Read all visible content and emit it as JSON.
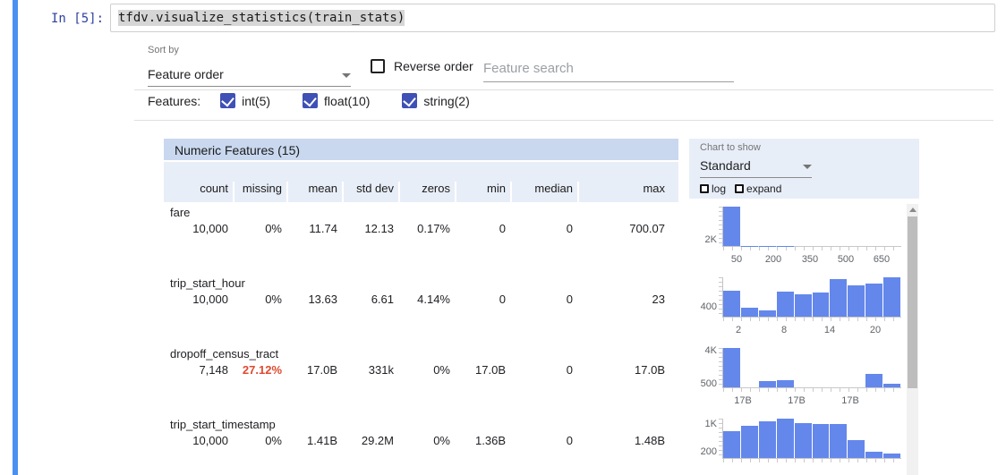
{
  "notebook": {
    "prompt": "In [5]:",
    "code": "tfdv.visualize_statistics(train_stats)"
  },
  "controls": {
    "sort_by_label": "Sort by",
    "sort_by_value": "Feature order",
    "reverse_order_label": "Reverse order",
    "feature_search_placeholder": "Feature search",
    "features_label": "Features:",
    "feature_type_filters": [
      {
        "label": "int(5)",
        "checked": true
      },
      {
        "label": "float(10)",
        "checked": true
      },
      {
        "label": "string(2)",
        "checked": true
      }
    ]
  },
  "table": {
    "title": "Numeric Features (15)",
    "columns": [
      "count",
      "missing",
      "mean",
      "std dev",
      "zeros",
      "min",
      "median",
      "max"
    ],
    "rows": [
      {
        "name": "fare",
        "values": [
          "10,000",
          "0%",
          "11.74",
          "12.13",
          "0.17%",
          "0",
          "0",
          "700.07"
        ],
        "missing_alert": false
      },
      {
        "name": "trip_start_hour",
        "values": [
          "10,000",
          "0%",
          "13.63",
          "6.61",
          "4.14%",
          "0",
          "0",
          "23"
        ],
        "missing_alert": false
      },
      {
        "name": "dropoff_census_tract",
        "values": [
          "7,148",
          "27.12%",
          "17.0B",
          "331k",
          "0%",
          "17.0B",
          "0",
          "17.0B"
        ],
        "missing_alert": true
      },
      {
        "name": "trip_start_timestamp",
        "values": [
          "10,000",
          "0%",
          "1.41B",
          "29.2M",
          "0%",
          "1.36B",
          "0",
          "1.48B"
        ],
        "missing_alert": false
      }
    ]
  },
  "chart_panel": {
    "chart_to_show_label": "Chart to show",
    "chart_type_value": "Standard",
    "log_label": "log",
    "expand_label": "expand"
  },
  "chart_data": [
    {
      "type": "bar",
      "feature": "fare",
      "values": [
        9800,
        55,
        30,
        20,
        14,
        10,
        7,
        5,
        3,
        2
      ],
      "yticks": [
        {
          "label": "2K",
          "pos": 0.8
        }
      ],
      "xticks": [
        {
          "label": "50",
          "pos": 0.08
        },
        {
          "label": "200",
          "pos": 0.285
        },
        {
          "label": "350",
          "pos": 0.49
        },
        {
          "label": "500",
          "pos": 0.69
        },
        {
          "label": "650",
          "pos": 0.89
        }
      ]
    },
    {
      "type": "bar",
      "feature": "trip_start_hour",
      "values": [
        860,
        300,
        215,
        830,
        740,
        800,
        1260,
        1050,
        1120,
        1320
      ],
      "yticks": [
        {
          "label": "400",
          "pos": 0.7
        }
      ],
      "xticks": [
        {
          "label": "2",
          "pos": 0.09
        },
        {
          "label": "8",
          "pos": 0.345
        },
        {
          "label": "14",
          "pos": 0.6
        },
        {
          "label": "20",
          "pos": 0.855
        }
      ]
    },
    {
      "type": "bar",
      "feature": "dropoff_census_tract",
      "values": [
        3900,
        0,
        600,
        700,
        0,
        0,
        0,
        0,
        1300,
        350
      ],
      "yticks": [
        {
          "label": "4K",
          "pos": 0.05
        },
        {
          "label": "500",
          "pos": 0.87
        }
      ],
      "xticks": [
        {
          "label": "17B",
          "pos": 0.115
        },
        {
          "label": "17B",
          "pos": 0.415
        },
        {
          "label": "17B",
          "pos": 0.715
        }
      ]
    },
    {
      "type": "bar",
      "feature": "trip_start_timestamp",
      "values": [
        680,
        825,
        940,
        1010,
        900,
        875,
        875,
        450,
        165,
        120
      ],
      "yticks": [
        {
          "label": "1K",
          "pos": 0.1
        },
        {
          "label": "200",
          "pos": 0.8
        }
      ],
      "xticks": []
    }
  ],
  "colors": {
    "bar_blue": "#6487eb",
    "checkbox_indigo": "#3f51b5",
    "alert_red": "#e0492f",
    "cell_selection_blue": "#4a90f2",
    "table_title_bg": "#c9d8ef",
    "table_header_bg": "#e8eef8"
  }
}
